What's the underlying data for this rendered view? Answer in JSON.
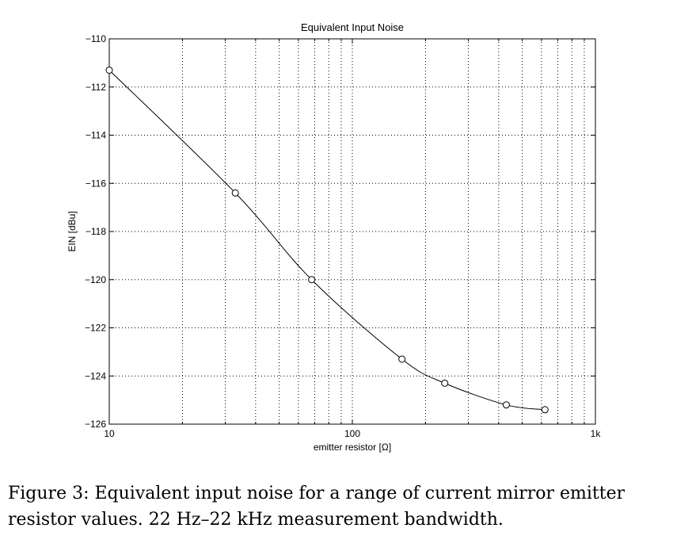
{
  "chart_data": {
    "type": "line",
    "title": "Equivalent Input Noise",
    "xlabel": "emitter resistor [Ω]",
    "ylabel": "EIN [dBu]",
    "xscale": "log",
    "xlim": [
      10,
      1000
    ],
    "ylim": [
      -126,
      -110
    ],
    "xticks": [
      10,
      100,
      1000
    ],
    "xtick_labels": [
      "10",
      "100",
      "1k"
    ],
    "yticks": [
      -110,
      -112,
      -114,
      -116,
      -118,
      -120,
      -122,
      -124,
      -126
    ],
    "ytick_labels": [
      "−110",
      "−112",
      "−114",
      "−116",
      "−118",
      "−120",
      "−122",
      "−124",
      "−126"
    ],
    "grid": true,
    "series": [
      {
        "marker": "circle-open",
        "color": "#000000",
        "points": [
          {
            "x": 10,
            "y": -111.3
          },
          {
            "x": 33,
            "y": -116.4
          },
          {
            "x": 68,
            "y": -120.0
          },
          {
            "x": 160,
            "y": -123.3
          },
          {
            "x": 240,
            "y": -124.3
          },
          {
            "x": 430,
            "y": -125.2
          },
          {
            "x": 620,
            "y": -125.4
          }
        ]
      }
    ]
  },
  "caption": {
    "text": "Figure 3: Equivalent input noise for a range of current mirror emitter resistor values. 22 Hz–22 kHz measurement bandwidth."
  }
}
